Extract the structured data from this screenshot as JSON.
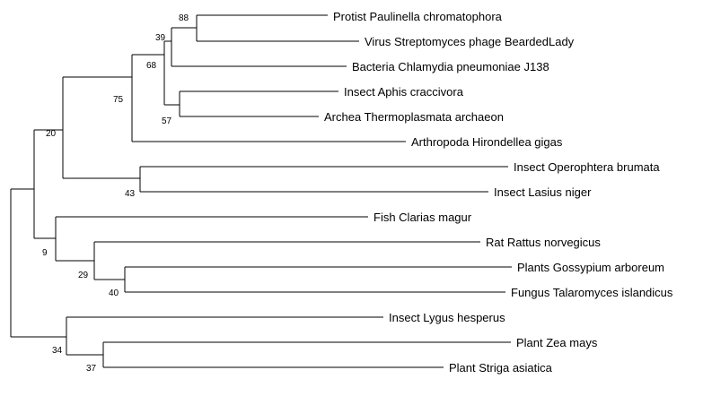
{
  "tree": {
    "taxa": [
      "Protist Paulinella chromatophora",
      "Virus Streptomyces phage BeardedLady",
      "Bacteria Chlamydia pneumoniae J138",
      "Insect Aphis craccivora",
      "Archea Thermoplasmata archaeon",
      "Arthropoda Hirondellea gigas",
      "Insect Operophtera brumata",
      "Insect Lasius niger",
      "Fish Clarias magur",
      "Rat Rattus norvegicus",
      "Plants Gossypium arboreum",
      "Fungus Talaromyces islandicus",
      "Insect Lygus hesperus",
      "Plant Zea mays",
      "Plant Striga asiatica"
    ],
    "bootstrap_values": {
      "protist_virus": "88",
      "protist_virus_bacteria": "39",
      "aphis_archea": "57",
      "group_68": "68",
      "group_75": "75",
      "operophtera_lasius": "43",
      "group_20": "20",
      "gossypium_talaromyces": "40",
      "group_29": "29",
      "group_9": "9",
      "zea_striga": "37",
      "lygus_group": "34"
    }
  }
}
